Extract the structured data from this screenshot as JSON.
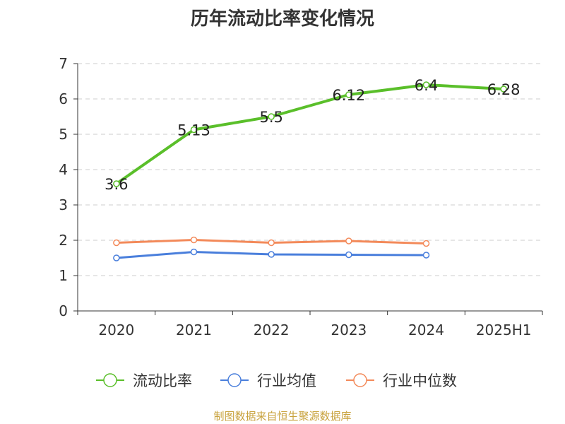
{
  "title": "历年流动比率变化情况",
  "source": "制图数据来自恒生聚源数据库",
  "colors": {
    "current_ratio": "#5abf2a",
    "industry_avg": "#4a7fdc",
    "industry_median": "#f38a5a",
    "grid": "#cccccc",
    "axis": "#333333",
    "source": "#c8a23c"
  },
  "chart_data": {
    "type": "line",
    "title": "历年流动比率变化情况",
    "categories": [
      "2020",
      "2021",
      "2022",
      "2023",
      "2024",
      "2025H1"
    ],
    "ylim": [
      0,
      7
    ],
    "yticks": [
      "0",
      "1",
      "2",
      "3",
      "4",
      "5",
      "6",
      "7"
    ],
    "grid": true,
    "legend": "bottom",
    "series": [
      {
        "name": "流动比率",
        "color_key": "current_ratio",
        "values": [
          3.6,
          5.13,
          5.5,
          6.12,
          6.4,
          6.28
        ],
        "labels": [
          "3.6",
          "5.13",
          "5.5",
          "6.12",
          "6.4",
          "6.28"
        ]
      },
      {
        "name": "行业均值",
        "color_key": "industry_avg",
        "values": [
          1.5,
          1.67,
          1.6,
          1.59,
          1.58,
          null
        ]
      },
      {
        "name": "行业中位数",
        "color_key": "industry_median",
        "values": [
          1.93,
          2.01,
          1.93,
          1.98,
          1.91,
          null
        ]
      }
    ]
  }
}
